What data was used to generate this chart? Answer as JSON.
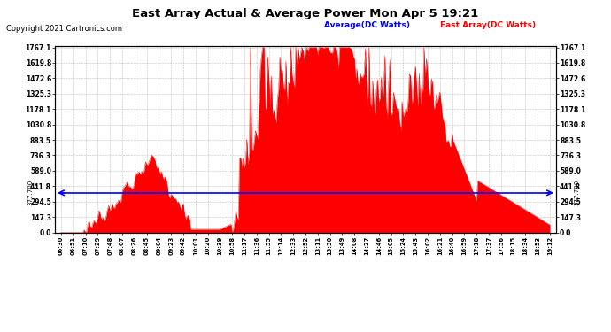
{
  "title": "East Array Actual & Average Power Mon Apr 5 19:21",
  "copyright": "Copyright 2021 Cartronics.com",
  "legend_avg": "Average(DC Watts)",
  "legend_east": "East Array(DC Watts)",
  "avg_value": 377.7,
  "ymax": 1767.1,
  "yticks": [
    0.0,
    147.3,
    294.5,
    441.8,
    589.0,
    736.3,
    883.5,
    1030.8,
    1178.1,
    1325.3,
    1472.6,
    1619.8,
    1767.1
  ],
  "avg_color": "#0000ff",
  "fill_color": "#ff0000",
  "line_color": "#ff0000",
  "grid_color": "#b0b0b0",
  "background_color": "#ffffff",
  "title_color": "#000000",
  "copyright_color": "#000000",
  "avg_label_color": "#0000ff",
  "east_label_color": "#ff0000",
  "x_labels": [
    "06:30",
    "06:51",
    "07:10",
    "07:29",
    "07:48",
    "08:07",
    "08:26",
    "08:45",
    "09:04",
    "09:23",
    "09:42",
    "10:01",
    "10:20",
    "10:39",
    "10:58",
    "11:17",
    "11:36",
    "11:55",
    "12:14",
    "12:33",
    "12:52",
    "13:11",
    "13:30",
    "13:49",
    "14:08",
    "14:27",
    "14:46",
    "15:05",
    "15:24",
    "15:43",
    "16:02",
    "16:21",
    "16:40",
    "16:59",
    "17:18",
    "17:37",
    "17:56",
    "18:15",
    "18:34",
    "18:53",
    "19:12"
  ]
}
